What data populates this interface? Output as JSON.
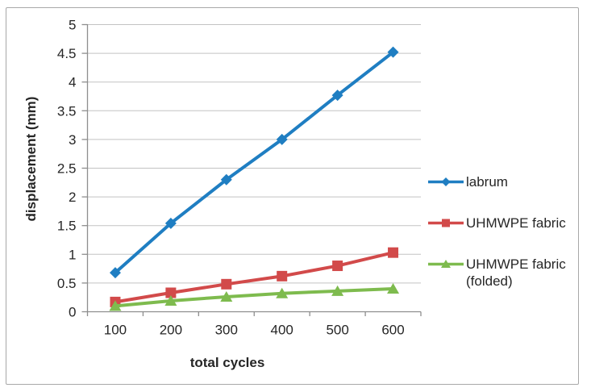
{
  "chart_data": {
    "type": "line",
    "xlabel": "total cycles",
    "ylabel": "displacement (mm)",
    "categories": [
      100,
      200,
      300,
      400,
      500,
      600
    ],
    "ylim": [
      0,
      5
    ],
    "ytick_step": 0.5,
    "ytick_labels": [
      "0",
      "0.5",
      "1",
      "1.5",
      "2",
      "2.5",
      "3",
      "3.5",
      "4",
      "4.5",
      "5"
    ],
    "grid": true,
    "legend_position": "right",
    "series": [
      {
        "name": "labrum",
        "marker": "diamond",
        "color": "#1F7EC2",
        "values": [
          0.68,
          1.54,
          2.3,
          3.0,
          3.77,
          4.52
        ]
      },
      {
        "name": "UHMWPE fabric",
        "marker": "square",
        "color": "#D24A4A",
        "values": [
          0.17,
          0.33,
          0.48,
          0.62,
          0.8,
          1.03
        ]
      },
      {
        "name": "UHMWPE fabric (folded)",
        "marker": "triangle",
        "color": "#7EBB4E",
        "values": [
          0.1,
          0.19,
          0.26,
          0.32,
          0.36,
          0.4
        ]
      }
    ],
    "colors": {
      "gridline": "#C3C3C3",
      "axis": "#8E8E8E",
      "text": "#262626",
      "frame_border": "#A8A8A8",
      "background": "#FFFFFF"
    }
  }
}
